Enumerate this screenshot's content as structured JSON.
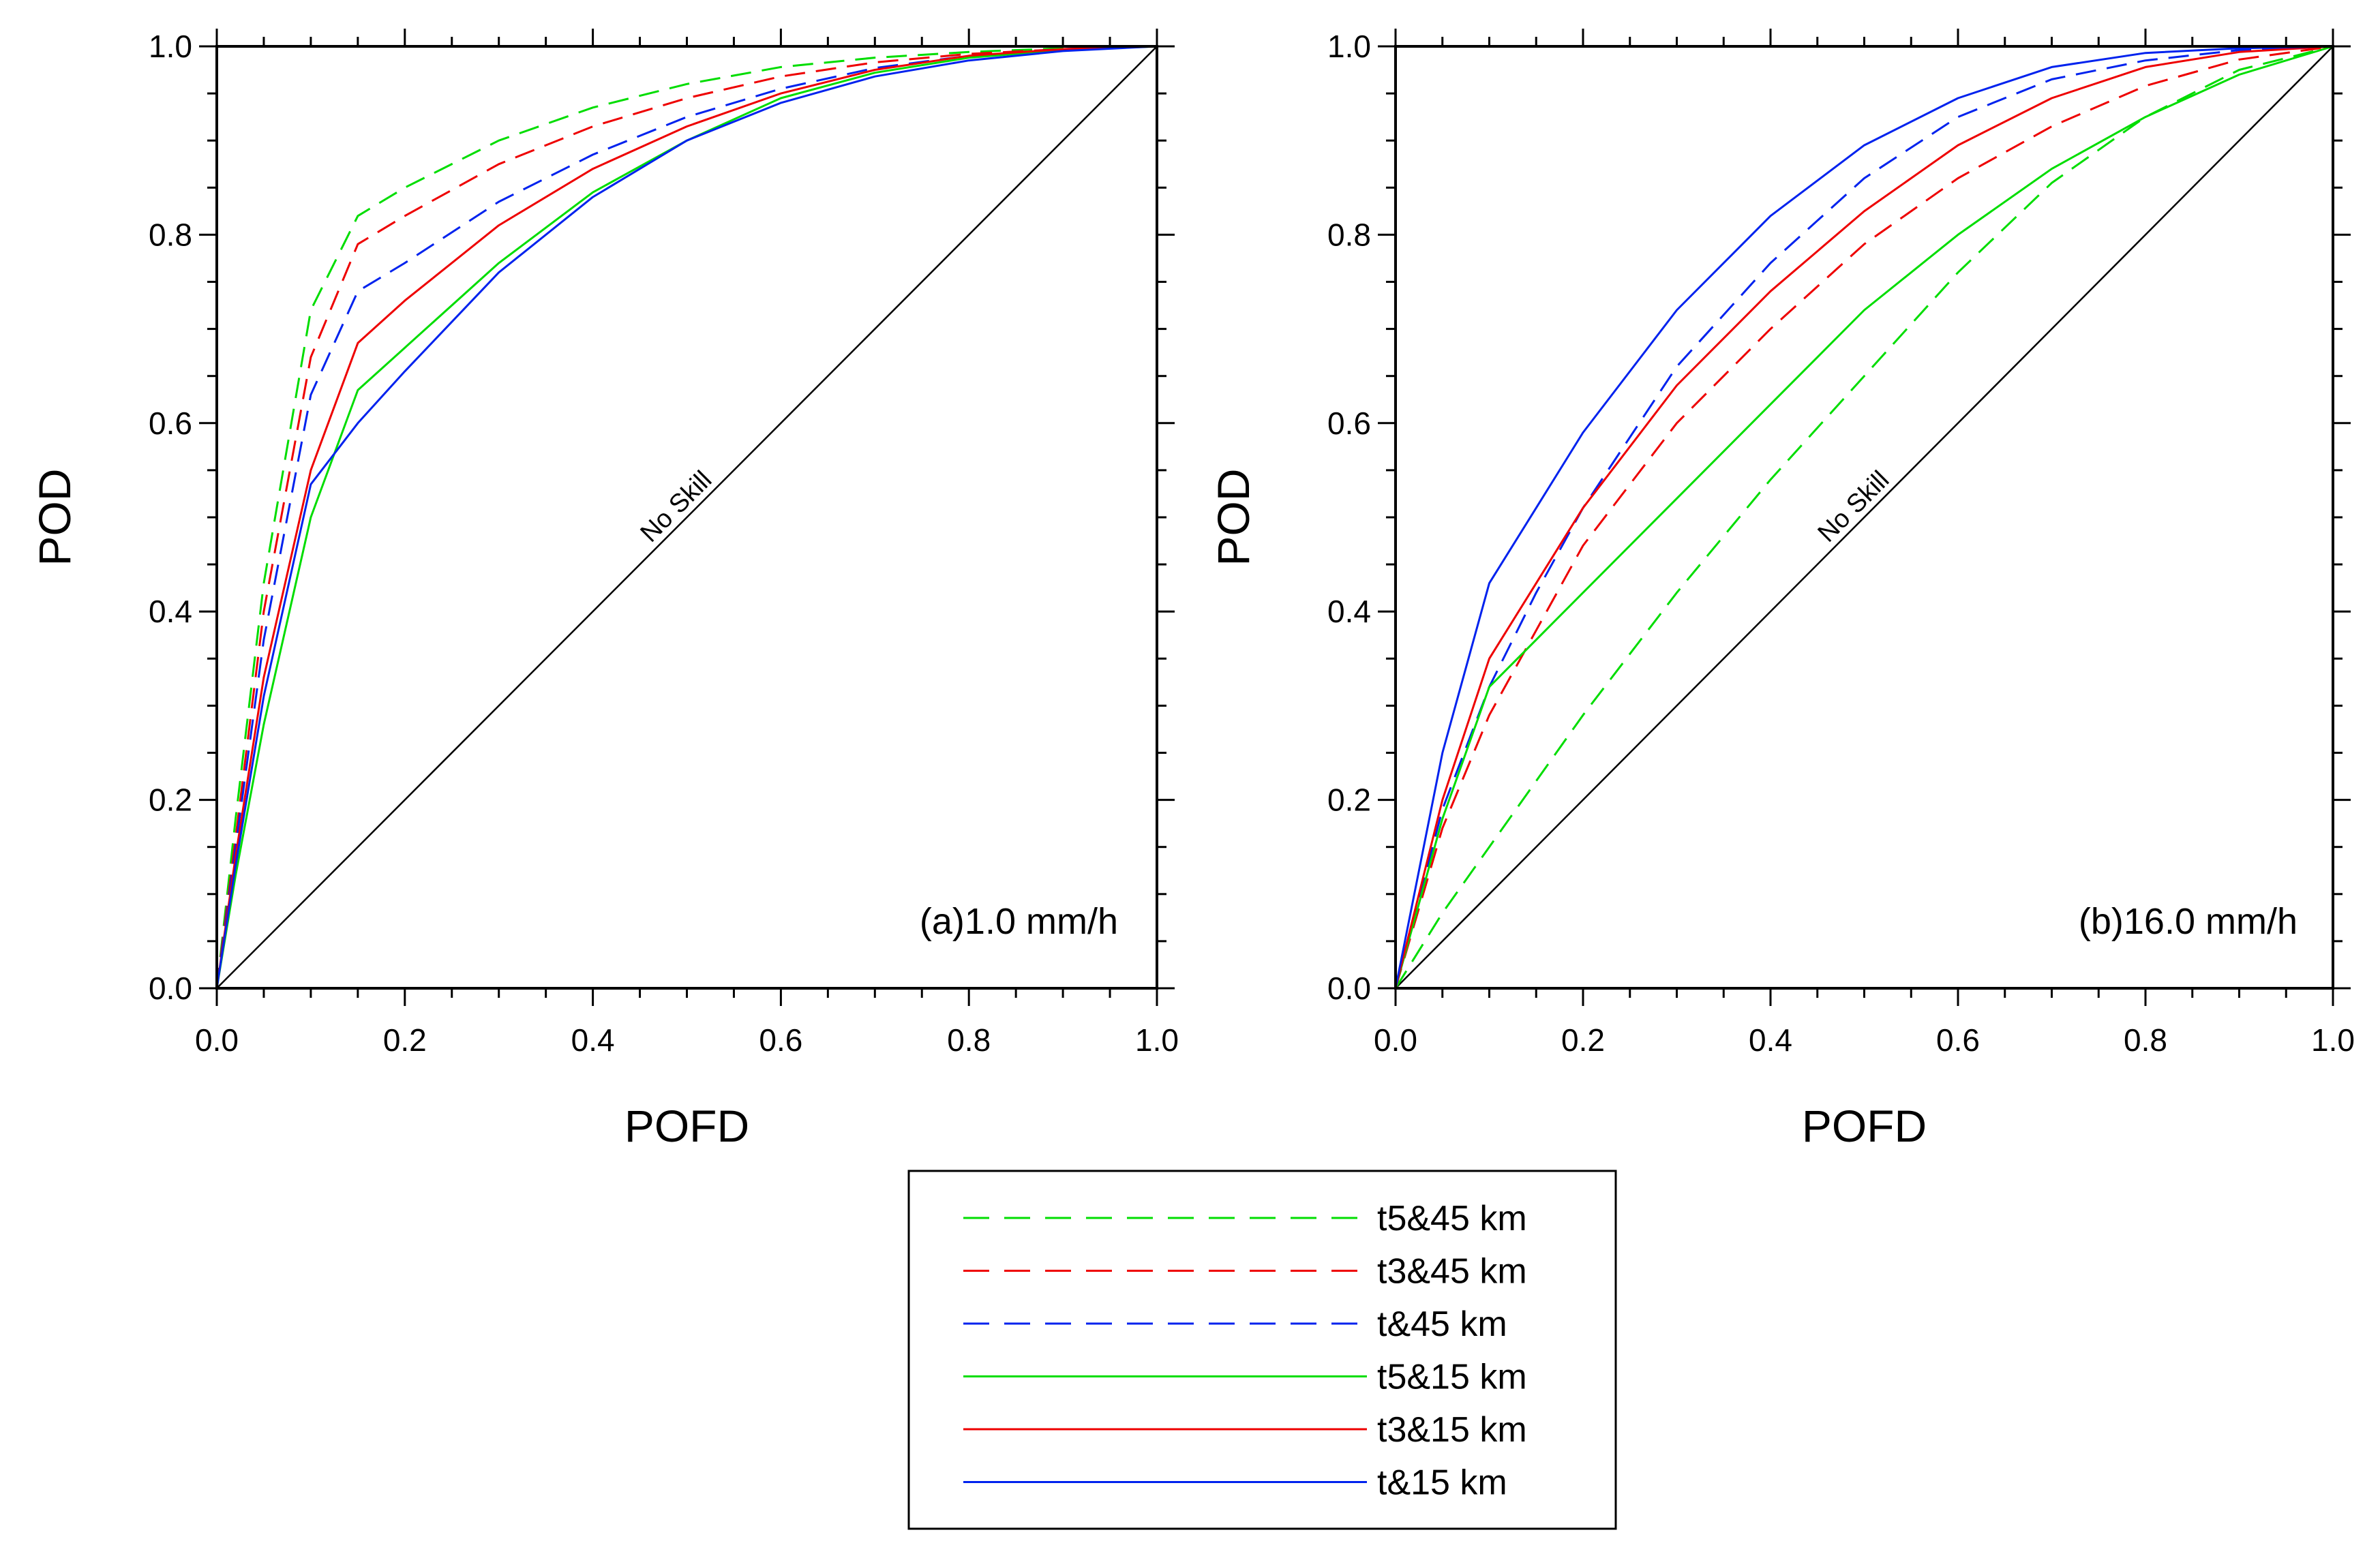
{
  "chart_data": [
    {
      "type": "line",
      "panel_label": "(a)1.0 mm/h",
      "xlabel": "POFD",
      "ylabel": "POD",
      "xlim": [
        0,
        1
      ],
      "ylim": [
        0,
        1
      ],
      "xticks": [
        "0.0",
        "0.2",
        "0.4",
        "0.6",
        "0.8",
        "1.0"
      ],
      "yticks": [
        "0.0",
        "0.2",
        "0.4",
        "0.6",
        "0.8",
        "1.0"
      ],
      "reference_line": {
        "label": "No Skill",
        "points": [
          [
            0,
            0
          ],
          [
            1,
            1
          ]
        ]
      },
      "series": [
        {
          "name": "t5&45 km",
          "color": "#00dd00",
          "dashed": true,
          "points": [
            [
              0,
              0
            ],
            [
              0.02,
              0.18
            ],
            [
              0.05,
              0.43
            ],
            [
              0.1,
              0.72
            ],
            [
              0.15,
              0.82
            ],
            [
              0.2,
              0.85
            ],
            [
              0.3,
              0.9
            ],
            [
              0.4,
              0.935
            ],
            [
              0.5,
              0.96
            ],
            [
              0.6,
              0.978
            ],
            [
              0.7,
              0.988
            ],
            [
              0.8,
              0.994
            ],
            [
              0.9,
              0.998
            ],
            [
              1.0,
              1.0
            ]
          ]
        },
        {
          "name": "t3&45 km",
          "color": "#ee0000",
          "dashed": true,
          "points": [
            [
              0,
              0
            ],
            [
              0.02,
              0.16
            ],
            [
              0.05,
              0.4
            ],
            [
              0.1,
              0.67
            ],
            [
              0.15,
              0.79
            ],
            [
              0.2,
              0.82
            ],
            [
              0.3,
              0.875
            ],
            [
              0.4,
              0.915
            ],
            [
              0.5,
              0.945
            ],
            [
              0.6,
              0.968
            ],
            [
              0.7,
              0.983
            ],
            [
              0.8,
              0.992
            ],
            [
              0.9,
              0.997
            ],
            [
              1.0,
              1.0
            ]
          ]
        },
        {
          "name": "t&45 km",
          "color": "#0022ee",
          "dashed": true,
          "points": [
            [
              0,
              0
            ],
            [
              0.02,
              0.15
            ],
            [
              0.05,
              0.37
            ],
            [
              0.1,
              0.63
            ],
            [
              0.15,
              0.74
            ],
            [
              0.2,
              0.77
            ],
            [
              0.3,
              0.835
            ],
            [
              0.4,
              0.885
            ],
            [
              0.5,
              0.925
            ],
            [
              0.6,
              0.955
            ],
            [
              0.7,
              0.977
            ],
            [
              0.8,
              0.99
            ],
            [
              0.9,
              0.997
            ],
            [
              1.0,
              1.0
            ]
          ]
        },
        {
          "name": "t5&15 km",
          "color": "#00dd00",
          "dashed": false,
          "points": [
            [
              0,
              0
            ],
            [
              0.02,
              0.12
            ],
            [
              0.05,
              0.28
            ],
            [
              0.1,
              0.5
            ],
            [
              0.15,
              0.635
            ],
            [
              0.2,
              0.68
            ],
            [
              0.3,
              0.77
            ],
            [
              0.4,
              0.845
            ],
            [
              0.5,
              0.9
            ],
            [
              0.6,
              0.945
            ],
            [
              0.7,
              0.972
            ],
            [
              0.8,
              0.988
            ],
            [
              0.9,
              0.996
            ],
            [
              1.0,
              1.0
            ]
          ]
        },
        {
          "name": "t3&15 km",
          "color": "#ee0000",
          "dashed": false,
          "points": [
            [
              0,
              0
            ],
            [
              0.02,
              0.14
            ],
            [
              0.05,
              0.33
            ],
            [
              0.1,
              0.55
            ],
            [
              0.15,
              0.685
            ],
            [
              0.2,
              0.73
            ],
            [
              0.3,
              0.81
            ],
            [
              0.4,
              0.87
            ],
            [
              0.5,
              0.915
            ],
            [
              0.6,
              0.95
            ],
            [
              0.7,
              0.975
            ],
            [
              0.8,
              0.99
            ],
            [
              0.9,
              0.997
            ],
            [
              1.0,
              1.0
            ]
          ]
        },
        {
          "name": "t&15 km",
          "color": "#0022ee",
          "dashed": false,
          "points": [
            [
              0,
              0
            ],
            [
              0.02,
              0.13
            ],
            [
              0.05,
              0.31
            ],
            [
              0.1,
              0.535
            ],
            [
              0.15,
              0.6
            ],
            [
              0.2,
              0.655
            ],
            [
              0.3,
              0.76
            ],
            [
              0.4,
              0.84
            ],
            [
              0.5,
              0.9
            ],
            [
              0.6,
              0.94
            ],
            [
              0.7,
              0.968
            ],
            [
              0.8,
              0.985
            ],
            [
              0.9,
              0.995
            ],
            [
              1.0,
              1.0
            ]
          ]
        }
      ]
    },
    {
      "type": "line",
      "panel_label": "(b)16.0 mm/h",
      "xlabel": "POFD",
      "ylabel": "POD",
      "xlim": [
        0,
        1
      ],
      "ylim": [
        0,
        1
      ],
      "xticks": [
        "0.0",
        "0.2",
        "0.4",
        "0.6",
        "0.8",
        "1.0"
      ],
      "yticks": [
        "0.0",
        "0.2",
        "0.4",
        "0.6",
        "0.8",
        "1.0"
      ],
      "reference_line": {
        "label": "No Skill",
        "points": [
          [
            0,
            0
          ],
          [
            1,
            1
          ]
        ]
      },
      "series": [
        {
          "name": "t5&45 km",
          "color": "#00dd00",
          "dashed": true,
          "points": [
            [
              0,
              0
            ],
            [
              0.05,
              0.08
            ],
            [
              0.1,
              0.15
            ],
            [
              0.2,
              0.29
            ],
            [
              0.3,
              0.42
            ],
            [
              0.4,
              0.54
            ],
            [
              0.5,
              0.65
            ],
            [
              0.6,
              0.76
            ],
            [
              0.7,
              0.855
            ],
            [
              0.8,
              0.925
            ],
            [
              0.9,
              0.975
            ],
            [
              1.0,
              1.0
            ]
          ]
        },
        {
          "name": "t3&45 km",
          "color": "#ee0000",
          "dashed": true,
          "points": [
            [
              0,
              0
            ],
            [
              0.05,
              0.17
            ],
            [
              0.1,
              0.29
            ],
            [
              0.15,
              0.38
            ],
            [
              0.2,
              0.47
            ],
            [
              0.3,
              0.6
            ],
            [
              0.4,
              0.7
            ],
            [
              0.5,
              0.79
            ],
            [
              0.6,
              0.86
            ],
            [
              0.7,
              0.915
            ],
            [
              0.8,
              0.958
            ],
            [
              0.9,
              0.986
            ],
            [
              1.0,
              1.0
            ]
          ]
        },
        {
          "name": "t&45 km",
          "color": "#0022ee",
          "dashed": true,
          "points": [
            [
              0,
              0
            ],
            [
              0.05,
              0.19
            ],
            [
              0.1,
              0.32
            ],
            [
              0.15,
              0.42
            ],
            [
              0.2,
              0.51
            ],
            [
              0.3,
              0.66
            ],
            [
              0.4,
              0.77
            ],
            [
              0.5,
              0.86
            ],
            [
              0.6,
              0.925
            ],
            [
              0.7,
              0.965
            ],
            [
              0.8,
              0.985
            ],
            [
              0.9,
              0.996
            ],
            [
              1.0,
              1.0
            ]
          ]
        },
        {
          "name": "t5&15 km",
          "color": "#00dd00",
          "dashed": false,
          "points": [
            [
              0,
              0
            ],
            [
              0.05,
              0.18
            ],
            [
              0.1,
              0.32
            ],
            [
              0.15,
              0.37
            ],
            [
              0.2,
              0.42
            ],
            [
              0.3,
              0.52
            ],
            [
              0.4,
              0.62
            ],
            [
              0.5,
              0.72
            ],
            [
              0.6,
              0.8
            ],
            [
              0.7,
              0.87
            ],
            [
              0.8,
              0.925
            ],
            [
              0.9,
              0.97
            ],
            [
              1.0,
              1.0
            ]
          ]
        },
        {
          "name": "t3&15 km",
          "color": "#ee0000",
          "dashed": false,
          "points": [
            [
              0,
              0
            ],
            [
              0.05,
              0.2
            ],
            [
              0.1,
              0.35
            ],
            [
              0.15,
              0.43
            ],
            [
              0.2,
              0.51
            ],
            [
              0.3,
              0.64
            ],
            [
              0.4,
              0.74
            ],
            [
              0.5,
              0.825
            ],
            [
              0.6,
              0.895
            ],
            [
              0.7,
              0.945
            ],
            [
              0.8,
              0.978
            ],
            [
              0.9,
              0.994
            ],
            [
              1.0,
              1.0
            ]
          ]
        },
        {
          "name": "t&15 km",
          "color": "#0022ee",
          "dashed": false,
          "points": [
            [
              0,
              0
            ],
            [
              0.05,
              0.25
            ],
            [
              0.1,
              0.43
            ],
            [
              0.15,
              0.51
            ],
            [
              0.2,
              0.59
            ],
            [
              0.3,
              0.72
            ],
            [
              0.4,
              0.82
            ],
            [
              0.5,
              0.895
            ],
            [
              0.6,
              0.945
            ],
            [
              0.7,
              0.978
            ],
            [
              0.8,
              0.993
            ],
            [
              0.9,
              0.998
            ],
            [
              1.0,
              1.0
            ]
          ]
        }
      ]
    }
  ],
  "legend": [
    {
      "label": "t5&45 km",
      "color": "#00dd00",
      "dashed": true
    },
    {
      "label": "t3&45 km",
      "color": "#ee0000",
      "dashed": true
    },
    {
      "label": "t&45 km",
      "color": "#0022ee",
      "dashed": true
    },
    {
      "label": "t5&15 km",
      "color": "#00dd00",
      "dashed": false
    },
    {
      "label": "t3&15 km",
      "color": "#ee0000",
      "dashed": false
    },
    {
      "label": "t&15 km",
      "color": "#0022ee",
      "dashed": false
    }
  ]
}
